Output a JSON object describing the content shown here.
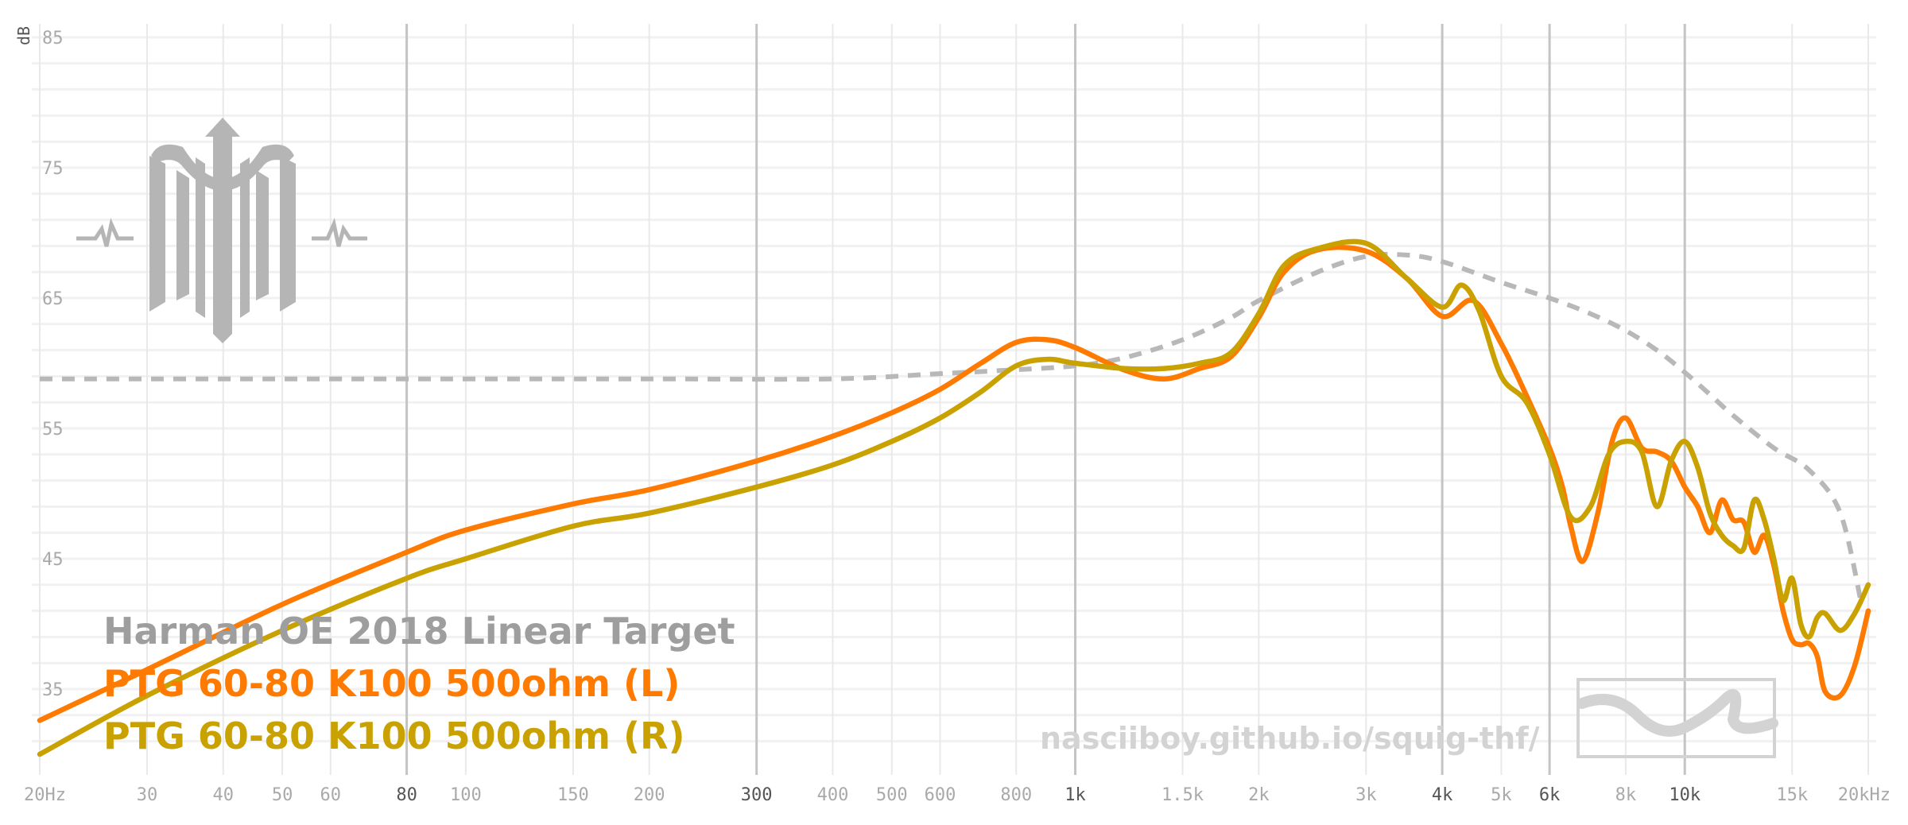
{
  "chart_data": {
    "type": "line",
    "ylabel": "dB",
    "ylim": [
      30,
      86
    ],
    "xscale": "log",
    "xlim": [
      20,
      20000
    ],
    "y_ticks": [
      35,
      45,
      55,
      65,
      75,
      85
    ],
    "x_ticks": [
      {
        "value": 20,
        "label": "20Hz",
        "major": false
      },
      {
        "value": 30,
        "label": "30",
        "major": false
      },
      {
        "value": 40,
        "label": "40",
        "major": false
      },
      {
        "value": 50,
        "label": "50",
        "major": false
      },
      {
        "value": 60,
        "label": "60",
        "major": false
      },
      {
        "value": 80,
        "label": "80",
        "major": true
      },
      {
        "value": 100,
        "label": "100",
        "major": false
      },
      {
        "value": 150,
        "label": "150",
        "major": false
      },
      {
        "value": 200,
        "label": "200",
        "major": false
      },
      {
        "value": 300,
        "label": "300",
        "major": true
      },
      {
        "value": 400,
        "label": "400",
        "major": false
      },
      {
        "value": 500,
        "label": "500",
        "major": false
      },
      {
        "value": 600,
        "label": "600",
        "major": false
      },
      {
        "value": 800,
        "label": "800",
        "major": false
      },
      {
        "value": 1000,
        "label": "1k",
        "major": true
      },
      {
        "value": 1500,
        "label": "1.5k",
        "major": false
      },
      {
        "value": 2000,
        "label": "2k",
        "major": false
      },
      {
        "value": 3000,
        "label": "3k",
        "major": false
      },
      {
        "value": 4000,
        "label": "4k",
        "major": true
      },
      {
        "value": 5000,
        "label": "5k",
        "major": false
      },
      {
        "value": 6000,
        "label": "6k",
        "major": true
      },
      {
        "value": 8000,
        "label": "8k",
        "major": false
      },
      {
        "value": 10000,
        "label": "10k",
        "major": true
      },
      {
        "value": 15000,
        "label": "15k",
        "major": false
      },
      {
        "value": 20000,
        "label": "20kHz",
        "major": false
      }
    ],
    "grid": true,
    "legend_position": "bottom-left",
    "series": [
      {
        "name": "Harman OE 2018 Linear Target",
        "color": "#b8b8b8",
        "dashed": true,
        "x": [
          20,
          50,
          100,
          200,
          400,
          600,
          800,
          1000,
          1200,
          1500,
          1800,
          2000,
          2500,
          3000,
          3500,
          4000,
          5000,
          6000,
          7000,
          8000,
          9000,
          10000,
          11000,
          12000,
          14000,
          16000,
          18000,
          19500
        ],
        "y": [
          58.8,
          58.8,
          58.8,
          58.8,
          58.8,
          59.2,
          59.5,
          59.8,
          60.4,
          61.8,
          63.5,
          64.8,
          67.0,
          68.2,
          68.3,
          67.8,
          66.2,
          65.0,
          63.8,
          62.5,
          61.0,
          59.3,
          57.6,
          56.0,
          53.5,
          51.8,
          48.5,
          41.5
        ]
      },
      {
        "name": "PTG 60-80 K100 500ohm (L)",
        "color": "#ff7a00",
        "dashed": false,
        "x": [
          20,
          30,
          50,
          80,
          100,
          150,
          200,
          300,
          400,
          500,
          600,
          700,
          800,
          900,
          1000,
          1200,
          1400,
          1600,
          1800,
          2000,
          2200,
          2500,
          3000,
          3500,
          4000,
          4500,
          5000,
          5500,
          6000,
          6300,
          6500,
          6800,
          7200,
          7600,
          8000,
          8500,
          9000,
          9500,
          10000,
          10500,
          11000,
          11500,
          12000,
          12500,
          13000,
          13500,
          14000,
          14500,
          15000,
          15500,
          16000,
          16500,
          17000,
          18000,
          19000,
          20000
        ],
        "y": [
          32.6,
          36.5,
          41.5,
          45.5,
          47.2,
          49.2,
          50.3,
          52.5,
          54.4,
          56.2,
          58.0,
          60.0,
          61.6,
          61.8,
          61.2,
          59.5,
          58.8,
          59.6,
          60.5,
          63.5,
          67.0,
          68.7,
          68.6,
          66.5,
          63.6,
          64.8,
          61.5,
          57.5,
          53.5,
          50.5,
          47.5,
          44.8,
          48.5,
          54.0,
          55.8,
          53.5,
          53.2,
          52.5,
          50.5,
          49.0,
          47.0,
          49.5,
          48.0,
          47.8,
          45.5,
          46.8,
          44.5,
          41.0,
          38.8,
          38.4,
          38.5,
          37.5,
          34.8,
          34.5,
          36.8,
          41.0
        ]
      },
      {
        "name": "PTG 60-80 K100 500ohm (R)",
        "color": "#c9a100",
        "dashed": false,
        "x": [
          20,
          30,
          50,
          80,
          100,
          150,
          200,
          300,
          400,
          500,
          600,
          700,
          800,
          900,
          1000,
          1200,
          1400,
          1600,
          1800,
          2000,
          2200,
          2500,
          3000,
          3500,
          4000,
          4300,
          4600,
          5000,
          5500,
          6000,
          6500,
          7000,
          7500,
          8000,
          8500,
          9000,
          9500,
          10000,
          10500,
          11000,
          11500,
          12000,
          12500,
          13000,
          13500,
          14000,
          14500,
          15000,
          15500,
          16000,
          16500,
          17000,
          18000,
          19000,
          20000
        ],
        "y": [
          30.0,
          34.5,
          39.5,
          43.5,
          45.0,
          47.5,
          48.5,
          50.5,
          52.2,
          54.0,
          55.8,
          57.8,
          59.8,
          60.3,
          60.0,
          59.6,
          59.6,
          60.0,
          60.8,
          63.8,
          67.5,
          68.8,
          69.2,
          66.5,
          64.3,
          66.0,
          64.0,
          59.0,
          57.0,
          53.0,
          48.2,
          49.0,
          53.0,
          54.0,
          53.2,
          49.0,
          52.5,
          54.0,
          52.0,
          48.5,
          46.8,
          46.0,
          45.8,
          49.5,
          48.0,
          45.0,
          41.8,
          43.5,
          40.0,
          39.0,
          40.5,
          40.8,
          39.5,
          40.8,
          43.0
        ]
      }
    ]
  },
  "legend": {
    "items": [
      {
        "label": "Harman OE 2018 Linear Target",
        "color": "#9e9e9e"
      },
      {
        "label": "PTG 60-80 K100 500ohm (L)",
        "color": "#ff7a00"
      },
      {
        "label": "PTG 60-80 K100 500ohm (R)",
        "color": "#c9a100"
      }
    ]
  },
  "watermark": {
    "url_text": "nasciiboy.github.io/squig-thf/",
    "logo": "trident-logo-icon",
    "badge": "wave-badge-icon"
  }
}
